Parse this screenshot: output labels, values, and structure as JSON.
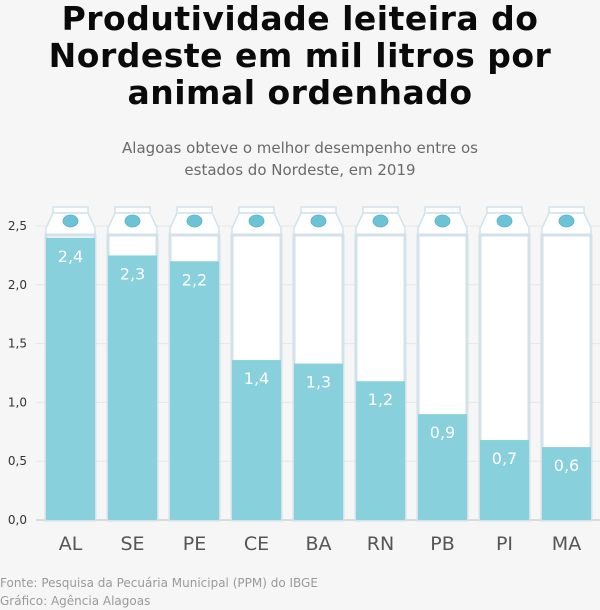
{
  "title_lines": [
    "Produtividade leiteira do",
    "Nordeste em mil litros por",
    "animal ordenhado"
  ],
  "subtitle_lines": [
    "Alagoas obteve o melhor desempenho entre os",
    "estados do Nordeste, em 2019"
  ],
  "footer": {
    "source": "Fonte: Pesquisa da Pecuária Municipal (PPM) do IBGE",
    "credit": "Gráfico: Agência Alagoas"
  },
  "colors": {
    "fill": "#88d1dc",
    "carton_outline": "#d3e2ea",
    "cap": "#6cc3d6",
    "value_label": "#ffffff",
    "axis_text": "#333333",
    "category_text": "#555555",
    "grid": "#e6e6e6"
  },
  "chart_data": {
    "type": "bar",
    "title": "Produtividade leiteira do Nordeste em mil litros por animal ordenhado",
    "subtitle": "Alagoas obteve o melhor desempenho entre os estados do Nordeste, em 2019",
    "categories": [
      "AL",
      "SE",
      "PE",
      "CE",
      "BA",
      "RN",
      "PB",
      "PI",
      "MA"
    ],
    "values": [
      2.4,
      2.25,
      2.2,
      1.36,
      1.33,
      1.18,
      0.9,
      0.68,
      0.62
    ],
    "labels": [
      "2,4",
      "2,3",
      "2,2",
      "1,4",
      "1,3",
      "1,2",
      "0,9",
      "0,7",
      "0,6"
    ],
    "xlabel": "",
    "ylabel": "",
    "ylim": [
      0,
      2.5
    ],
    "yticks": [
      0,
      0.5,
      1.0,
      1.5,
      2.0,
      2.5
    ],
    "ytick_labels": [
      "0,0",
      "0,5",
      "1,0",
      "1,5",
      "2,0",
      "2,5"
    ],
    "grid": true,
    "legend": "none"
  }
}
